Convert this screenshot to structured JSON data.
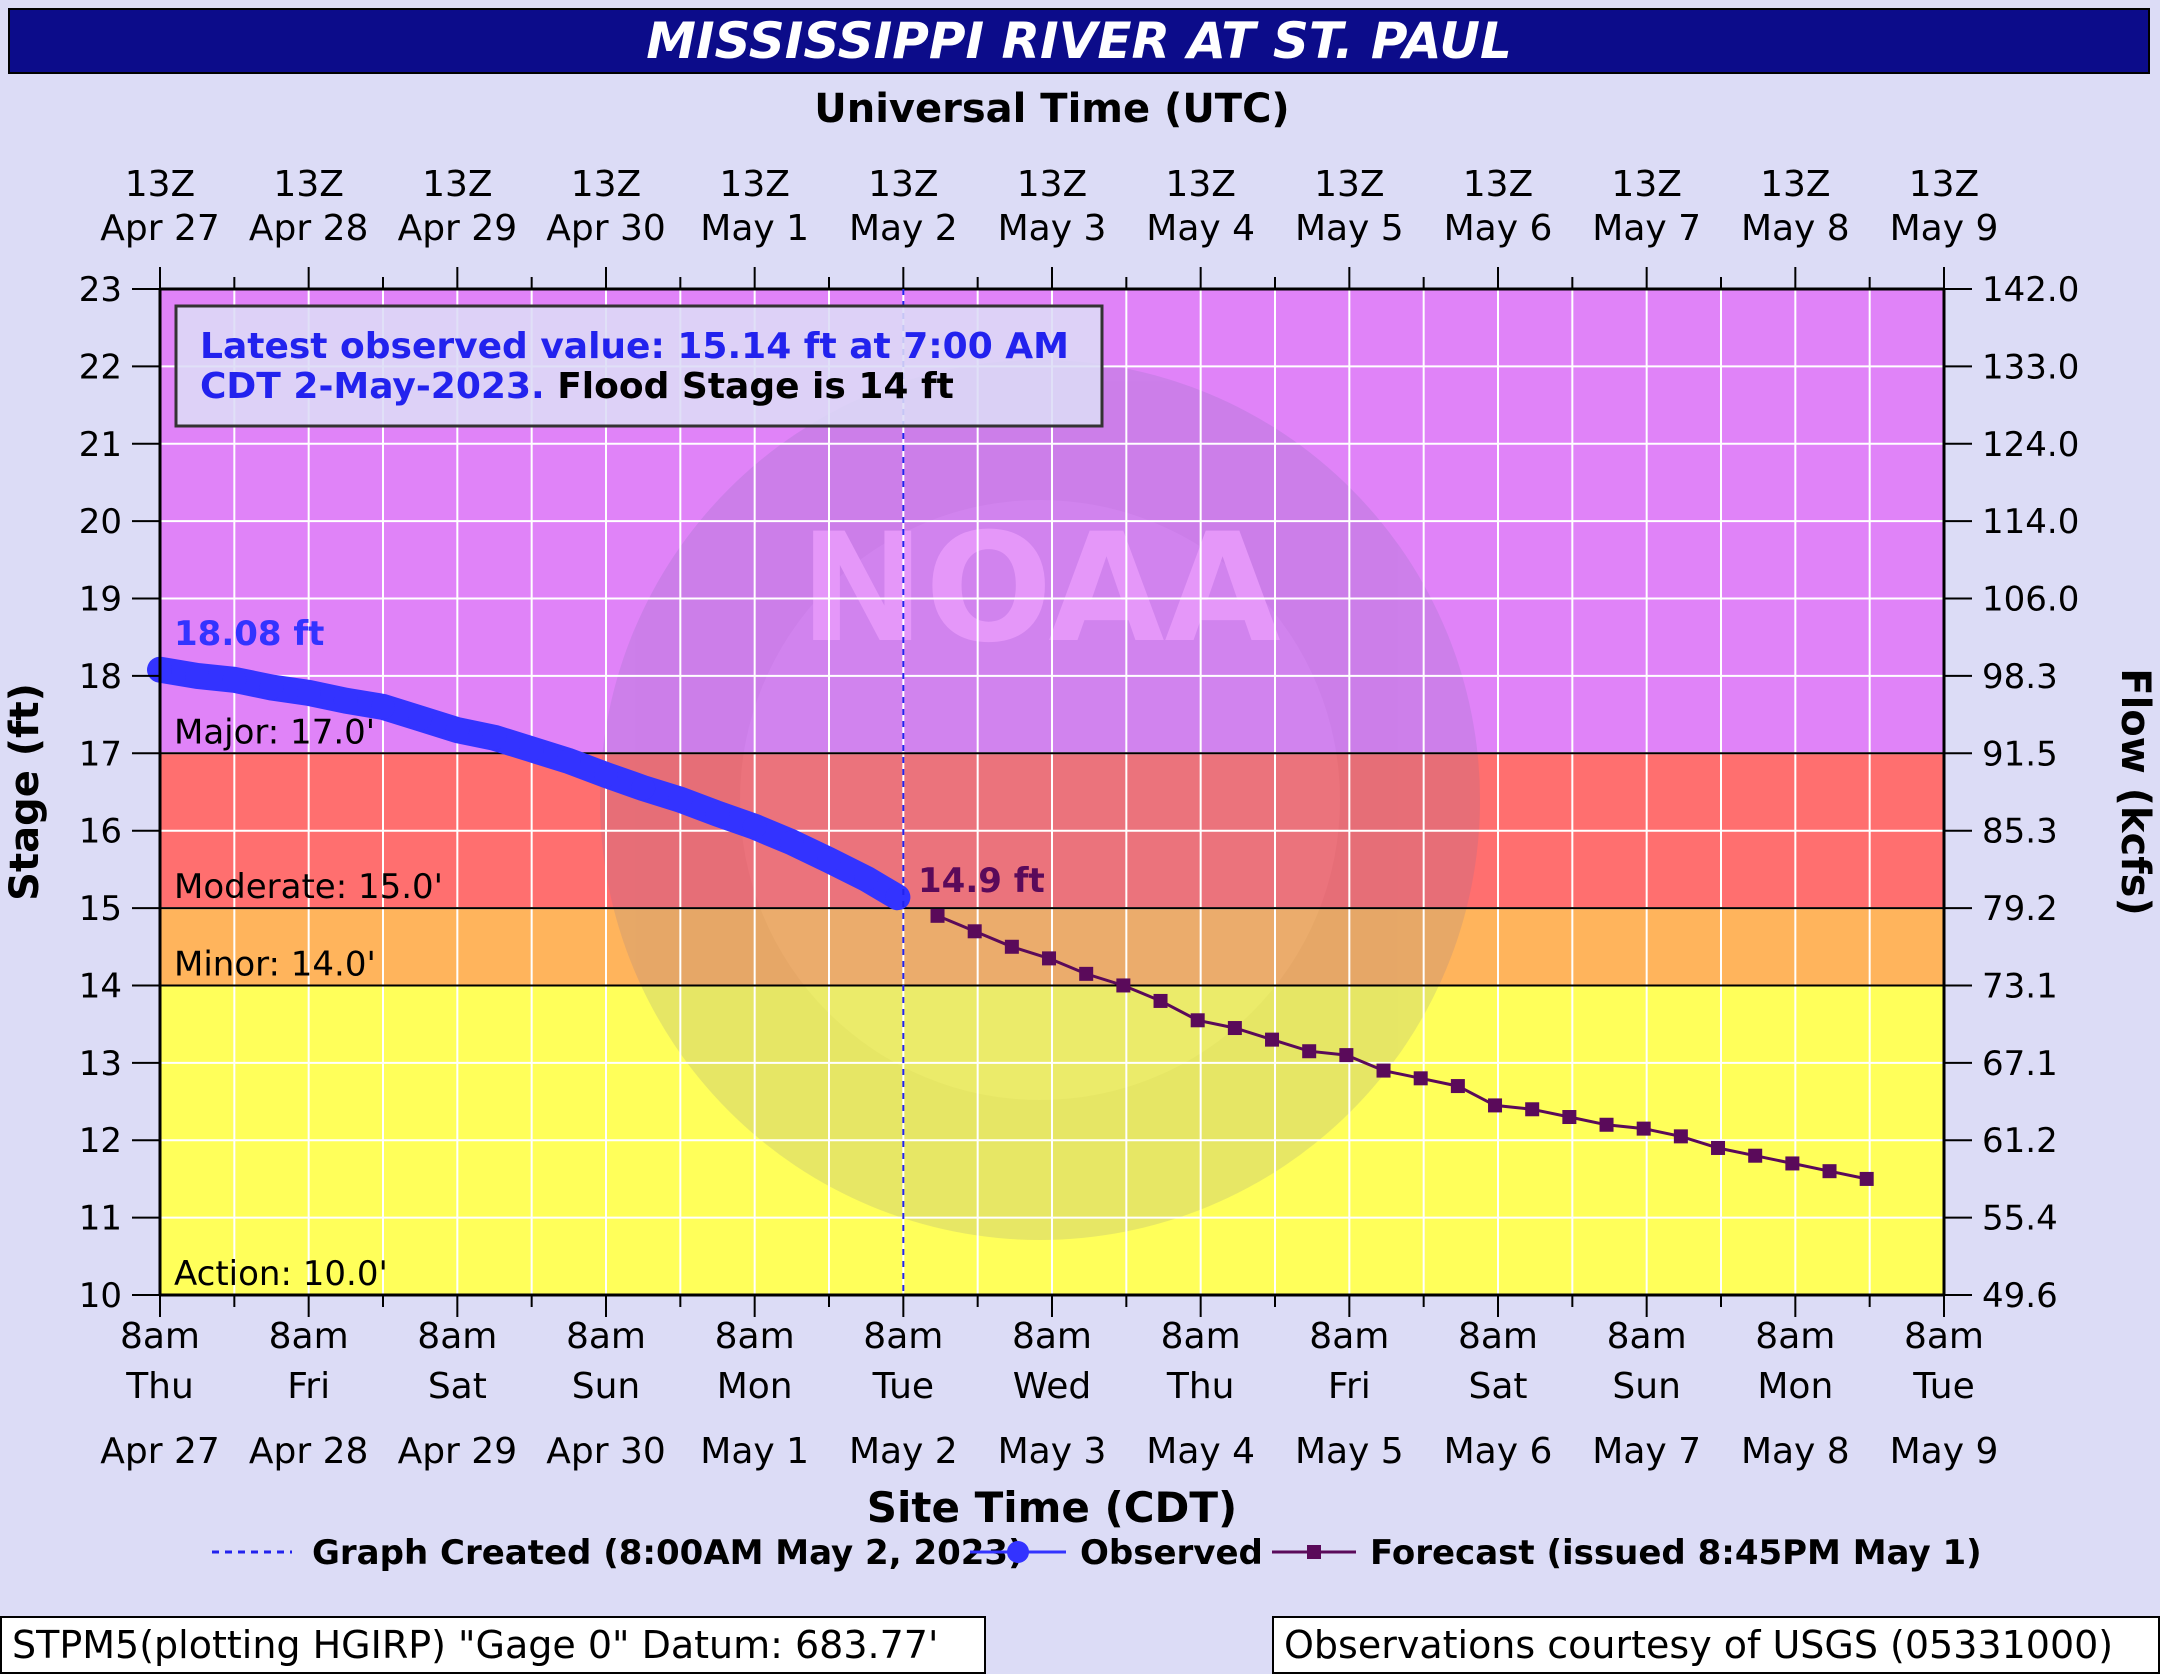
{
  "title": "MISSISSIPPI RIVER AT ST. PAUL",
  "chart_data": {
    "type": "line",
    "title": "MISSISSIPPI RIVER AT ST. PAUL",
    "top_axis_label": "Universal Time (UTC)",
    "xlabel": "Site Time (CDT)",
    "ylabel": "Stage (ft)",
    "y2label": "Flow (kcfs)",
    "ylim": [
      10,
      23
    ],
    "yticks": [
      "10",
      "11",
      "12",
      "13",
      "14",
      "15",
      "16",
      "17",
      "18",
      "19",
      "20",
      "21",
      "22",
      "23"
    ],
    "y2ticks": [
      "49.6",
      "55.4",
      "61.2",
      "67.1",
      "73.1",
      "79.2",
      "85.3",
      "91.5",
      "98.3",
      "106.0",
      "114.0",
      "124.0",
      "133.0",
      "142.0"
    ],
    "x_range_days": [
      0,
      12
    ],
    "grid": true,
    "top_ticks": [
      {
        "t": "13Z",
        "d": "Apr 27"
      },
      {
        "t": "13Z",
        "d": "Apr 28"
      },
      {
        "t": "13Z",
        "d": "Apr 29"
      },
      {
        "t": "13Z",
        "d": "Apr 30"
      },
      {
        "t": "13Z",
        "d": "May  1"
      },
      {
        "t": "13Z",
        "d": "May  2"
      },
      {
        "t": "13Z",
        "d": "May  3"
      },
      {
        "t": "13Z",
        "d": "May  4"
      },
      {
        "t": "13Z",
        "d": "May  5"
      },
      {
        "t": "13Z",
        "d": "May  6"
      },
      {
        "t": "13Z",
        "d": "May  7"
      },
      {
        "t": "13Z",
        "d": "May  8"
      },
      {
        "t": "13Z",
        "d": "May  9"
      }
    ],
    "bottom_ticks": [
      {
        "t": "8am",
        "w": "Thu",
        "d": "Apr 27"
      },
      {
        "t": "8am",
        "w": "Fri",
        "d": "Apr 28"
      },
      {
        "t": "8am",
        "w": "Sat",
        "d": "Apr 29"
      },
      {
        "t": "8am",
        "w": "Sun",
        "d": "Apr 30"
      },
      {
        "t": "8am",
        "w": "Mon",
        "d": "May 1"
      },
      {
        "t": "8am",
        "w": "Tue",
        "d": "May 2"
      },
      {
        "t": "8am",
        "w": "Wed",
        "d": "May 3"
      },
      {
        "t": "8am",
        "w": "Thu",
        "d": "May 4"
      },
      {
        "t": "8am",
        "w": "Fri",
        "d": "May 5"
      },
      {
        "t": "8am",
        "w": "Sat",
        "d": "May 6"
      },
      {
        "t": "8am",
        "w": "Sun",
        "d": "May 7"
      },
      {
        "t": "8am",
        "w": "Mon",
        "d": "May 8"
      },
      {
        "t": "8am",
        "w": "Tue",
        "d": "May 9"
      }
    ],
    "flood_categories": [
      {
        "name": "Major",
        "label": "Major: 17.0'",
        "stage": 17,
        "color": "#e083f8"
      },
      {
        "name": "Moderate",
        "label": "Moderate: 15.0'",
        "stage": 15,
        "color": "#ff6f6f"
      },
      {
        "name": "Minor",
        "label": "Minor: 14.0'",
        "stage": 14,
        "color": "#ffb45c"
      },
      {
        "name": "Action",
        "label": "Action: 10.0'",
        "stage": 10,
        "color": "#ffff5a"
      }
    ],
    "series": [
      {
        "name": "Observed",
        "color": "#3333ff",
        "x": [
          0,
          0.25,
          0.5,
          0.75,
          1,
          1.25,
          1.5,
          1.75,
          2,
          2.25,
          2.5,
          2.75,
          3,
          3.25,
          3.5,
          3.75,
          4,
          4.25,
          4.5,
          4.75,
          4.96
        ],
        "y": [
          18.08,
          18.0,
          17.95,
          17.85,
          17.78,
          17.68,
          17.6,
          17.45,
          17.3,
          17.2,
          17.05,
          16.9,
          16.72,
          16.55,
          16.4,
          16.22,
          16.05,
          15.85,
          15.62,
          15.38,
          15.14
        ]
      },
      {
        "name": "Forecast (issued 8:45PM May 1)",
        "color": "#5a0a5a",
        "x": [
          5.23,
          5.48,
          5.73,
          5.98,
          6.23,
          6.48,
          6.73,
          6.98,
          7.23,
          7.48,
          7.73,
          7.98,
          8.23,
          8.48,
          8.73,
          8.98,
          9.23,
          9.48,
          9.73,
          9.98,
          10.23,
          10.48,
          10.73,
          10.98,
          11.23,
          11.48
        ],
        "y": [
          14.9,
          14.7,
          14.5,
          14.35,
          14.15,
          14.0,
          13.8,
          13.55,
          13.45,
          13.3,
          13.15,
          13.1,
          12.9,
          12.8,
          12.7,
          12.45,
          12.4,
          12.3,
          12.2,
          12.15,
          12.05,
          11.9,
          11.8,
          11.7,
          11.6,
          11.5
        ]
      }
    ],
    "annotations": {
      "box_line1": "Latest observed value: 15.14 ft at 7:00 AM",
      "box_line2a": "CDT 2-May-2023.",
      "box_line2b": " Flood Stage is 14 ft",
      "peak_label": "18.08 ft",
      "forecast_label": "14.9 ft",
      "created_x": 5.0
    },
    "legend": {
      "position": "bottom",
      "created": "Graph Created (8:00AM May 2, 2023)",
      "observed": "Observed",
      "forecast": "Forecast (issued 8:45PM May 1)"
    }
  },
  "watermark_text": "NOAA",
  "footer": {
    "left": "STPM5(plotting HGIRP) \"Gage 0\" Datum: 683.77'",
    "right": "Observations courtesy of USGS (05331000)"
  }
}
